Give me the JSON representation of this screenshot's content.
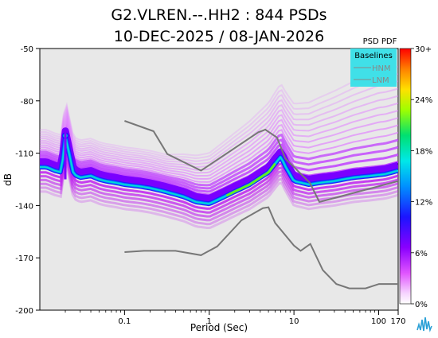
{
  "chart_data": {
    "type": "heatmap",
    "title_line1": "G2.VLREN.--.HH2 : 844 PSDs",
    "title_line2": "10-DEC-2025 / 08-JAN-2026",
    "xlabel": "Period (Sec)",
    "ylabel": "dB",
    "xscale": "log",
    "xlim": [
      0.01,
      170
    ],
    "ylim": [
      -200,
      -50
    ],
    "x_ticks": [
      {
        "value": 0.1,
        "label": "0.1"
      },
      {
        "value": 1,
        "label": "1"
      },
      {
        "value": 10,
        "label": "10"
      },
      {
        "value": 100,
        "label": "100"
      },
      {
        "value": 170,
        "label": "170"
      }
    ],
    "y_ticks": [
      {
        "value": -50,
        "label": "-50"
      },
      {
        "value": -80,
        "label": "-80"
      },
      {
        "value": -110,
        "label": "-110"
      },
      {
        "value": -140,
        "label": "-140"
      },
      {
        "value": -170,
        "label": "-170"
      },
      {
        "value": -200,
        "label": "-200"
      }
    ],
    "legend": {
      "title": "Baselines",
      "position": "top-right",
      "entries": [
        "HNM",
        "LNM"
      ],
      "background": "#40e0e8",
      "line_color": "#888888"
    },
    "colorbar": {
      "title": "PSD PDF",
      "ticks": [
        "30+",
        "24%",
        "18%",
        "12%",
        "6%",
        "0%"
      ]
    },
    "baseline_color": "#777777",
    "series": [
      {
        "name": "HNM",
        "x": [
          0.1,
          0.22,
          0.32,
          0.8,
          3.8,
          4.6,
          6.3,
          7.9,
          15.4,
          20,
          170
        ],
        "y": [
          -91.5,
          -97.4,
          -110.5,
          -120.0,
          -98.0,
          -96.5,
          -101.0,
          -113.0,
          -127.0,
          -138.0,
          -126.0
        ]
      },
      {
        "name": "LNM",
        "x": [
          0.1,
          0.17,
          0.4,
          0.8,
          1.24,
          2.4,
          4.3,
          5.0,
          6.0,
          10.0,
          12.0,
          15.6,
          21.9,
          31.6,
          45.0,
          70.0,
          101.0,
          154.0,
          170.0
        ],
        "y": [
          -166.7,
          -166.0,
          -166.0,
          -168.5,
          -163.5,
          -148.5,
          -141.5,
          -141.0,
          -150.0,
          -163.0,
          -166.0,
          -162.0,
          -177.0,
          -185.0,
          -187.5,
          -187.5,
          -185.0,
          -185.0,
          -185.0
        ]
      }
    ],
    "pdf_mode_line": {
      "x": [
        0.012,
        0.015,
        0.018,
        0.02,
        0.025,
        0.03,
        0.04,
        0.05,
        0.06,
        0.08,
        0.1,
        0.15,
        0.2,
        0.3,
        0.5,
        0.7,
        1.0,
        1.5,
        2.0,
        3.0,
        4.0,
        5.0,
        6.0,
        7.0,
        8.0,
        10.0,
        15.0,
        20.0,
        30.0,
        50.0,
        80.0,
        120.0,
        170.0
      ],
      "y": [
        -118,
        -120,
        -121,
        -100,
        -122,
        -124,
        -123,
        -125,
        -126,
        -127,
        -128,
        -129,
        -130,
        -132,
        -135,
        -138,
        -139,
        -135,
        -132,
        -128,
        -124,
        -121,
        -116,
        -112,
        -118,
        -126,
        -128,
        -127,
        -126,
        -124,
        -123,
        -122,
        -120
      ]
    }
  }
}
